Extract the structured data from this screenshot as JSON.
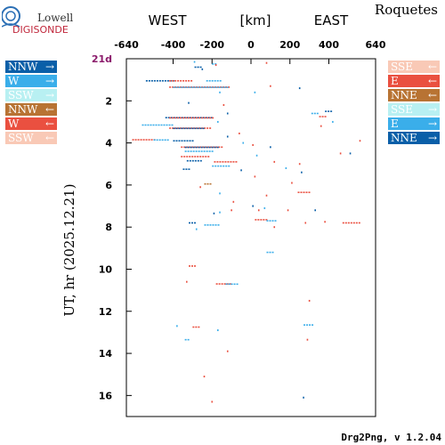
{
  "logo": {
    "line1": "Lowell",
    "line2": "DIGISONDE"
  },
  "station": "Roquetes",
  "footer": "Drg2Png, v 1.2.04",
  "colors": {
    "NNW": "#0a5fa8",
    "W": "#3aaeea",
    "SSW": "#b8f0f2",
    "NNE": "#b87333",
    "E": "#ea5040",
    "SSE": "#f9c9b6",
    "day_label": "#8b1a6b"
  },
  "legend_left": [
    {
      "label": "NNW",
      "arrow": "→",
      "color": "#0a5fa8"
    },
    {
      "label": "W",
      "arrow": "→",
      "color": "#3aaeea"
    },
    {
      "label": "SSW",
      "arrow": "→",
      "color": "#b8f0f2"
    },
    {
      "label": "NNW",
      "arrow": "←",
      "color": "#b87333"
    },
    {
      "label": "W",
      "arrow": "←",
      "color": "#ea5040"
    },
    {
      "label": "SSW",
      "arrow": "←",
      "color": "#f9c9b6"
    }
  ],
  "legend_right": [
    {
      "label": "SSE",
      "arrow": "←",
      "color": "#f9c9b6"
    },
    {
      "label": "E",
      "arrow": "←",
      "color": "#ea5040"
    },
    {
      "label": "NNE",
      "arrow": "←",
      "color": "#b87333"
    },
    {
      "label": "SSE",
      "arrow": "→",
      "color": "#b8f0f2"
    },
    {
      "label": "E",
      "arrow": "→",
      "color": "#3aaeea"
    },
    {
      "label": "NNE",
      "arrow": "→",
      "color": "#0a5fa8"
    }
  ],
  "chart_data": {
    "type": "scatter",
    "xlabel_west": "WEST",
    "xlabel_unit": "[km]",
    "xlabel_east": "EAST",
    "ylabel": "UT, hr (2025.12.21)",
    "day_label": "21d",
    "xlim": [
      -640,
      640
    ],
    "ylim": [
      0,
      17
    ],
    "xticks": [
      -640,
      -400,
      -200,
      0,
      200,
      400,
      640
    ],
    "xtick_labels": [
      "-640",
      "-400",
      "-200",
      "0",
      "200",
      "400",
      "640"
    ],
    "yticks": [
      2,
      4,
      6,
      8,
      10,
      12,
      14,
      16
    ],
    "ytick_labels": [
      "2",
      "4",
      "6",
      "8",
      "10",
      "12",
      "14",
      "16"
    ],
    "grid": false,
    "segments": [
      {
        "x1": -540,
        "x2": -400,
        "t": 1.05,
        "color": "#0a5fa8"
      },
      {
        "x1": -420,
        "x2": -310,
        "t": 1.05,
        "color": "#ea5040"
      },
      {
        "x1": -230,
        "x2": -160,
        "t": 1.05,
        "color": "#3aaeea"
      },
      {
        "x1": -420,
        "x2": -110,
        "t": 1.35,
        "color": "#ea5040"
      },
      {
        "x1": -400,
        "x2": -120,
        "t": 1.36,
        "color": "#3aaeea"
      },
      {
        "x1": -440,
        "x2": -200,
        "t": 2.8,
        "color": "#0a5fa8"
      },
      {
        "x1": -420,
        "x2": -190,
        "t": 2.81,
        "color": "#ea5040"
      },
      {
        "x1": -560,
        "x2": -400,
        "t": 3.15,
        "color": "#3aaeea"
      },
      {
        "x1": -420,
        "x2": -210,
        "t": 3.3,
        "color": "#ea5040"
      },
      {
        "x1": -400,
        "x2": -240,
        "t": 3.31,
        "color": "#0a5fa8"
      },
      {
        "x1": -610,
        "x2": -500,
        "t": 3.85,
        "color": "#ea5040"
      },
      {
        "x1": -500,
        "x2": -420,
        "t": 3.86,
        "color": "#3aaeea"
      },
      {
        "x1": -400,
        "x2": -300,
        "t": 3.9,
        "color": "#0a5fa8"
      },
      {
        "x1": -360,
        "x2": -150,
        "t": 4.2,
        "color": "#ea5040"
      },
      {
        "x1": -340,
        "x2": -170,
        "t": 4.21,
        "color": "#0a5fa8"
      },
      {
        "x1": -340,
        "x2": -190,
        "t": 4.4,
        "color": "#3aaeea"
      },
      {
        "x1": -360,
        "x2": -220,
        "t": 4.65,
        "color": "#ea5040"
      },
      {
        "x1": -330,
        "x2": -250,
        "t": 4.85,
        "color": "#0a5fa8"
      },
      {
        "x1": -190,
        "x2": -80,
        "t": 4.9,
        "color": "#ea5040"
      },
      {
        "x1": -200,
        "x2": -110,
        "t": 5.1,
        "color": "#3aaeea"
      },
      {
        "x1": -350,
        "x2": -320,
        "t": 5.25,
        "color": "#0a5fa8"
      },
      {
        "x1": -240,
        "x2": -170,
        "t": 7.9,
        "color": "#3aaeea"
      },
      {
        "x1": -320,
        "x2": -290,
        "t": 7.8,
        "color": "#0a5fa8"
      },
      {
        "x1": -180,
        "x2": -100,
        "t": 10.7,
        "color": "#ea5040"
      },
      {
        "x1": -130,
        "x2": -70,
        "t": 10.71,
        "color": "#3aaeea"
      },
      {
        "x1": -320,
        "x2": -290,
        "t": 9.85,
        "color": "#ea5040"
      },
      {
        "x1": 20,
        "x2": 80,
        "t": 7.65,
        "color": "#ea5040"
      },
      {
        "x1": 80,
        "x2": 130,
        "t": 7.7,
        "color": "#3aaeea"
      },
      {
        "x1": 470,
        "x2": 560,
        "t": 7.8,
        "color": "#ea5040"
      },
      {
        "x1": 240,
        "x2": 300,
        "t": 6.35,
        "color": "#ea5040"
      },
      {
        "x1": 270,
        "x2": 320,
        "t": 12.65,
        "color": "#3aaeea"
      },
      {
        "x1": 310,
        "x2": 350,
        "t": 2.6,
        "color": "#3aaeea"
      },
      {
        "x1": 350,
        "x2": 390,
        "t": 2.75,
        "color": "#ea5040"
      },
      {
        "x1": 380,
        "x2": 420,
        "t": 2.5,
        "color": "#0a5fa8"
      },
      {
        "x1": 80,
        "x2": 110,
        "t": 9.2,
        "color": "#3aaeea"
      },
      {
        "x1": -300,
        "x2": -270,
        "t": 12.75,
        "color": "#ea5040"
      },
      {
        "x1": -340,
        "x2": -320,
        "t": 13.35,
        "color": "#3aaeea"
      },
      {
        "x1": -240,
        "x2": -200,
        "t": 5.95,
        "color": "#b87333"
      },
      {
        "x1": -200,
        "x2": -180,
        "t": 0.25,
        "color": "#3aaeea"
      },
      {
        "x1": -290,
        "x2": -260,
        "t": 0.4,
        "color": "#0a5fa8"
      }
    ],
    "points": [
      {
        "x": -290,
        "t": 0.15,
        "color": "#3aaeea"
      },
      {
        "x": -180,
        "t": 0.3,
        "color": "#ea5040"
      },
      {
        "x": -250,
        "t": 0.5,
        "color": "#0a5fa8"
      },
      {
        "x": -160,
        "t": 1.6,
        "color": "#3aaeea"
      },
      {
        "x": -140,
        "t": 2.2,
        "color": "#ea5040"
      },
      {
        "x": -120,
        "t": 2.6,
        "color": "#0a5fa8"
      },
      {
        "x": -170,
        "t": 3.0,
        "color": "#3aaeea"
      },
      {
        "x": -60,
        "t": 3.55,
        "color": "#ea5040"
      },
      {
        "x": -120,
        "t": 3.7,
        "color": "#0a5fa8"
      },
      {
        "x": -40,
        "t": 4.0,
        "color": "#3aaeea"
      },
      {
        "x": 10,
        "t": 4.1,
        "color": "#ea5040"
      },
      {
        "x": 100,
        "t": 4.2,
        "color": "#0a5fa8"
      },
      {
        "x": 30,
        "t": 4.6,
        "color": "#3aaeea"
      },
      {
        "x": 120,
        "t": 4.9,
        "color": "#ea5040"
      },
      {
        "x": -50,
        "t": 5.3,
        "color": "#0a5fa8"
      },
      {
        "x": 20,
        "t": 5.6,
        "color": "#ea5040"
      },
      {
        "x": 180,
        "t": 5.2,
        "color": "#3aaeea"
      },
      {
        "x": 250,
        "t": 5.0,
        "color": "#ea5040"
      },
      {
        "x": 260,
        "t": 5.4,
        "color": "#0a5fa8"
      },
      {
        "x": 460,
        "t": 4.5,
        "color": "#ea5040"
      },
      {
        "x": 510,
        "t": 4.5,
        "color": "#0a5fa8"
      },
      {
        "x": 560,
        "t": 3.9,
        "color": "#ea5040"
      },
      {
        "x": 360,
        "t": 3.2,
        "color": "#ea5040"
      },
      {
        "x": 420,
        "t": 3.0,
        "color": "#3aaeea"
      },
      {
        "x": -260,
        "t": 6.1,
        "color": "#ea5040"
      },
      {
        "x": -160,
        "t": 6.4,
        "color": "#3aaeea"
      },
      {
        "x": -90,
        "t": 6.8,
        "color": "#ea5040"
      },
      {
        "x": 10,
        "t": 7.0,
        "color": "#0a5fa8"
      },
      {
        "x": -100,
        "t": 7.2,
        "color": "#ea5040"
      },
      {
        "x": -160,
        "t": 7.3,
        "color": "#3aaeea"
      },
      {
        "x": -190,
        "t": 7.35,
        "color": "#0a5fa8"
      },
      {
        "x": 40,
        "t": 7.2,
        "color": "#ea5040"
      },
      {
        "x": 70,
        "t": 7.1,
        "color": "#3aaeea"
      },
      {
        "x": 190,
        "t": 7.2,
        "color": "#ea5040"
      },
      {
        "x": 280,
        "t": 7.8,
        "color": "#ea5040"
      },
      {
        "x": 380,
        "t": 7.75,
        "color": "#ea5040"
      },
      {
        "x": -280,
        "t": 8.1,
        "color": "#3aaeea"
      },
      {
        "x": 120,
        "t": 8.0,
        "color": "#ea5040"
      },
      {
        "x": 330,
        "t": 7.2,
        "color": "#0a5fa8"
      },
      {
        "x": 210,
        "t": 5.9,
        "color": "#ea5040"
      },
      {
        "x": 80,
        "t": 6.5,
        "color": "#ea5040"
      },
      {
        "x": 300,
        "t": 11.5,
        "color": "#ea5040"
      },
      {
        "x": -380,
        "t": 12.7,
        "color": "#3aaeea"
      },
      {
        "x": -170,
        "t": 12.9,
        "color": "#3aaeea"
      },
      {
        "x": -120,
        "t": 13.9,
        "color": "#ea5040"
      },
      {
        "x": 290,
        "t": 13.35,
        "color": "#ea5040"
      },
      {
        "x": -240,
        "t": 15.1,
        "color": "#ea5040"
      },
      {
        "x": -200,
        "t": 16.3,
        "color": "#ea5040"
      },
      {
        "x": 270,
        "t": 16.1,
        "color": "#0a5fa8"
      },
      {
        "x": -330,
        "t": 10.6,
        "color": "#ea5040"
      },
      {
        "x": 80,
        "t": 0.2,
        "color": "#ea5040"
      },
      {
        "x": 250,
        "t": 1.4,
        "color": "#0a5fa8"
      },
      {
        "x": 20,
        "t": 1.6,
        "color": "#3aaeea"
      },
      {
        "x": 100,
        "t": 1.3,
        "color": "#ea5040"
      },
      {
        "x": -320,
        "t": 2.1,
        "color": "#0a5fa8"
      }
    ]
  }
}
